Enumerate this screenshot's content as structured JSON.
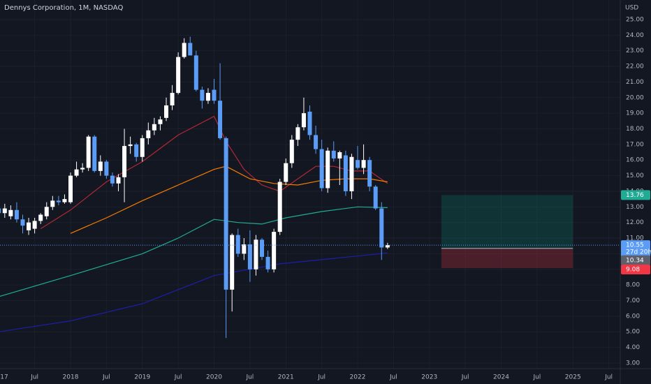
{
  "chart_data": {
    "type": "candlestick",
    "title": "Dennys Corporation, 1M, NASDAQ",
    "currency": "USD",
    "countdown": "27d 20h",
    "up_color": "#ffffff",
    "down_color": "#5b9cf6",
    "x": [
      "2017-01",
      "2017-02",
      "2017-03",
      "2017-04",
      "2017-05",
      "2017-06",
      "2017-07",
      "2017-08",
      "2017-09",
      "2017-10",
      "2017-11",
      "2017-12",
      "2018-01",
      "2018-02",
      "2018-03",
      "2018-04",
      "2018-05",
      "2018-06",
      "2018-07",
      "2018-08",
      "2018-09",
      "2018-10",
      "2018-11",
      "2018-12",
      "2019-01",
      "2019-02",
      "2019-03",
      "2019-04",
      "2019-05",
      "2019-06",
      "2019-07",
      "2019-08",
      "2019-09",
      "2019-10",
      "2019-11",
      "2019-12",
      "2020-01",
      "2020-02",
      "2020-03",
      "2020-04",
      "2020-05",
      "2020-06",
      "2020-07",
      "2020-08",
      "2020-09",
      "2020-10",
      "2020-11",
      "2020-12",
      "2021-01",
      "2021-02",
      "2021-03",
      "2021-04",
      "2021-05",
      "2021-06",
      "2021-07",
      "2021-08",
      "2021-09",
      "2021-10",
      "2021-11",
      "2021-12",
      "2022-01",
      "2022-02",
      "2022-03",
      "2022-04",
      "2022-05",
      "2022-06"
    ],
    "open": [
      12.9,
      12.6,
      12.4,
      12.8,
      12.2,
      11.5,
      11.6,
      12.1,
      12.4,
      13.0,
      13.4,
      13.3,
      13.3,
      15.0,
      15.4,
      15.5,
      17.5,
      15.3,
      15.9,
      15.0,
      14.5,
      14.9,
      16.9,
      17.0,
      16.2,
      17.4,
      17.9,
      18.3,
      18.7,
      19.5,
      20.3,
      22.6,
      23.5,
      22.7,
      20.5,
      19.8,
      20.5,
      19.8,
      17.4,
      7.7,
      11.2,
      10.0,
      10.6,
      9.0,
      10.9,
      9.8,
      9.0,
      11.4,
      14.6,
      15.8,
      17.3,
      18.1,
      19.1,
      17.6,
      16.7,
      14.2,
      16.6,
      16.1,
      16.3,
      14.0,
      16.0,
      15.5,
      16.0,
      14.3,
      12.9,
      10.4
    ],
    "high": [
      14.3,
      13.2,
      13.1,
      13.3,
      12.5,
      12.3,
      12.3,
      12.6,
      13.3,
      13.7,
      13.7,
      13.8,
      15.2,
      15.9,
      15.8,
      17.6,
      17.6,
      16.3,
      16.0,
      15.2,
      15.1,
      18.0,
      17.5,
      17.1,
      17.6,
      18.4,
      18.7,
      18.8,
      20.0,
      20.8,
      22.9,
      23.8,
      23.9,
      23.0,
      20.7,
      20.6,
      21.2,
      22.2,
      17.5,
      11.3,
      11.6,
      11.0,
      11.5,
      11.2,
      11.0,
      10.2,
      11.6,
      14.8,
      16.1,
      17.6,
      18.3,
      20.0,
      19.5,
      18.2,
      17.3,
      16.8,
      17.2,
      16.6,
      16.6,
      16.4,
      16.9,
      17.0,
      16.2,
      14.4,
      13.3,
      10.7
    ],
    "low": [
      12.5,
      12.3,
      12.2,
      12.0,
      11.3,
      11.2,
      11.3,
      11.9,
      12.2,
      12.8,
      13.1,
      13.2,
      13.2,
      14.9,
      15.2,
      15.3,
      15.2,
      15.0,
      14.8,
      14.3,
      14.0,
      13.3,
      16.4,
      15.9,
      15.9,
      17.0,
      17.6,
      17.9,
      18.5,
      19.2,
      20.2,
      22.5,
      22.7,
      20.4,
      19.3,
      19.6,
      19.6,
      17.3,
      4.6,
      6.3,
      9.8,
      9.6,
      8.2,
      8.6,
      9.6,
      8.8,
      8.8,
      11.2,
      14.4,
      15.5,
      16.9,
      17.9,
      17.3,
      16.4,
      14.0,
      13.9,
      15.9,
      14.4,
      13.7,
      13.5,
      15.4,
      15.1,
      14.0,
      12.8,
      9.6,
      10.3
    ],
    "close": [
      12.6,
      12.9,
      12.8,
      12.2,
      11.8,
      12.0,
      12.1,
      12.5,
      13.0,
      13.4,
      13.3,
      13.5,
      15.0,
      15.4,
      15.5,
      17.5,
      15.3,
      15.9,
      15.0,
      14.5,
      14.9,
      16.9,
      17.0,
      16.2,
      17.4,
      17.9,
      18.3,
      18.6,
      19.5,
      20.3,
      22.6,
      23.5,
      22.7,
      20.5,
      19.8,
      20.3,
      19.8,
      17.4,
      7.7,
      11.2,
      10.0,
      10.6,
      9.0,
      10.9,
      9.8,
      9.0,
      11.4,
      14.6,
      15.8,
      17.3,
      18.1,
      19.0,
      17.6,
      16.7,
      14.2,
      16.6,
      16.1,
      16.5,
      14.0,
      16.2,
      15.5,
      16.0,
      14.3,
      12.9,
      10.4,
      10.55
    ],
    "lines": [
      {
        "color": "#b22833",
        "x": [
          "2017-08",
          "2018-01",
          "2018-07",
          "2019-01",
          "2019-07",
          "2020-01",
          "2020-03",
          "2020-06",
          "2020-09",
          "2020-12",
          "2021-03",
          "2021-06",
          "2021-09",
          "2021-12",
          "2022-03",
          "2022-06"
        ],
        "values": [
          11.6,
          12.8,
          14.6,
          15.9,
          17.6,
          18.8,
          17.2,
          15.4,
          14.4,
          14.0,
          14.8,
          15.6,
          15.6,
          15.3,
          15.3,
          14.5
        ]
      },
      {
        "color": "#f57c00",
        "x": [
          "2018-01",
          "2018-07",
          "2019-01",
          "2019-07",
          "2020-01",
          "2020-03",
          "2020-07",
          "2020-11",
          "2021-03",
          "2021-07",
          "2021-11",
          "2022-03",
          "2022-06"
        ],
        "values": [
          11.3,
          12.3,
          13.4,
          14.4,
          15.4,
          15.6,
          14.8,
          14.5,
          14.4,
          14.7,
          14.8,
          14.8,
          14.6
        ]
      },
      {
        "color": "#22ab94",
        "x": [
          "2017-01",
          "2018-01",
          "2019-01",
          "2019-07",
          "2020-01",
          "2020-05",
          "2020-09",
          "2021-01",
          "2021-07",
          "2022-01",
          "2022-06"
        ],
        "values": [
          7.25,
          8.6,
          10.0,
          11.0,
          12.2,
          12.0,
          11.9,
          12.3,
          12.7,
          13.0,
          12.95
        ]
      },
      {
        "color": "#1e1ea8",
        "x": [
          "2017-01",
          "2018-01",
          "2019-01",
          "2020-01",
          "2020-12",
          "2021-09",
          "2022-06"
        ],
        "values": [
          5.0,
          5.7,
          6.8,
          8.6,
          9.35,
          9.7,
          10.05
        ]
      }
    ],
    "position": {
      "x_start": "2023-03",
      "x_end": "2025-01",
      "target": 13.76,
      "entry": 10.34,
      "stop": 9.08
    },
    "xlim": [
      "2017-01",
      "2025-08"
    ],
    "xticks": [
      {
        "value": "2017-01",
        "label": "17"
      },
      {
        "value": "2017-07",
        "label": "Jul"
      },
      {
        "value": "2018-01",
        "label": "2018"
      },
      {
        "value": "2018-07",
        "label": "Jul"
      },
      {
        "value": "2019-01",
        "label": "2019"
      },
      {
        "value": "2019-07",
        "label": "Jul"
      },
      {
        "value": "2020-01",
        "label": "2020"
      },
      {
        "value": "2020-07",
        "label": "Jul"
      },
      {
        "value": "2021-01",
        "label": "2021"
      },
      {
        "value": "2021-07",
        "label": "Jul"
      },
      {
        "value": "2022-01",
        "label": "2022"
      },
      {
        "value": "2022-07",
        "label": "Jul"
      },
      {
        "value": "2023-01",
        "label": "2023"
      },
      {
        "value": "2023-07",
        "label": "Jul"
      },
      {
        "value": "2024-01",
        "label": "2024"
      },
      {
        "value": "2024-07",
        "label": "Jul"
      },
      {
        "value": "2025-01",
        "label": "2025"
      },
      {
        "value": "2025-07",
        "label": "Jul"
      }
    ],
    "ylim": [
      2.64,
      26.25
    ],
    "yticks": [
      {
        "value": 3,
        "label": "3.00"
      },
      {
        "value": 4,
        "label": "4.00"
      },
      {
        "value": 5,
        "label": "5.00"
      },
      {
        "value": 6,
        "label": "6.00"
      },
      {
        "value": 7,
        "label": "7.00"
      },
      {
        "value": 8,
        "label": "8.00"
      },
      {
        "value": 9,
        "label": "9.00"
      },
      {
        "value": 10,
        "label": "10.00"
      },
      {
        "value": 11,
        "label": "11.00"
      },
      {
        "value": 12,
        "label": "12.00"
      },
      {
        "value": 13,
        "label": "13.00"
      },
      {
        "value": 14,
        "label": "14.00"
      },
      {
        "value": 15,
        "label": "15.00"
      },
      {
        "value": 16,
        "label": "16.00"
      },
      {
        "value": 17,
        "label": "17.00"
      },
      {
        "value": 18,
        "label": "18.00"
      },
      {
        "value": 19,
        "label": "19.00"
      },
      {
        "value": 20,
        "label": "20.00"
      },
      {
        "value": 21,
        "label": "21.00"
      },
      {
        "value": 22,
        "label": "22.00"
      },
      {
        "value": 23,
        "label": "23.00"
      },
      {
        "value": 24,
        "label": "24.00"
      },
      {
        "value": 25,
        "label": "25.00"
      }
    ],
    "grid": true
  }
}
